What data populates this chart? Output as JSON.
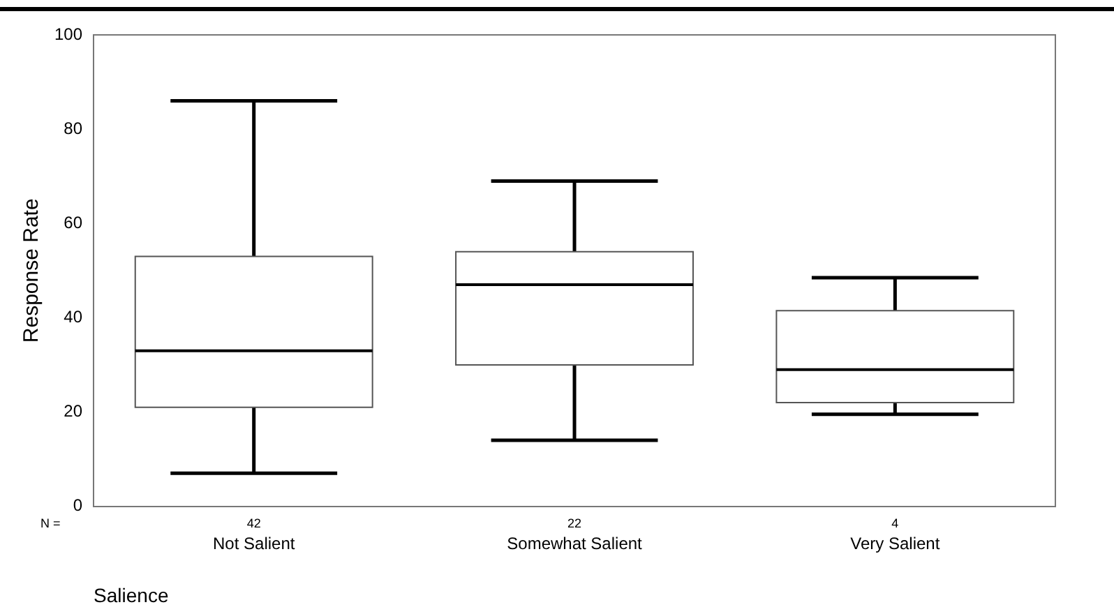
{
  "chart_data": {
    "type": "box",
    "xlabel": "Salience",
    "ylabel": "Response Rate",
    "categories": [
      "Not Salient",
      "Somewhat Salient",
      "Very Salient"
    ],
    "boxes": [
      {
        "low": 7,
        "q1": 21,
        "median": 33,
        "q3": 53,
        "high": 86
      },
      {
        "low": 14,
        "q1": 30,
        "median": 47,
        "q3": 54,
        "high": 69
      },
      {
        "low": 19.5,
        "q1": 22,
        "median": 29,
        "q3": 41.5,
        "high": 48.5
      }
    ],
    "ylim": [
      0,
      100
    ],
    "yticks": [
      0,
      20,
      40,
      60,
      80,
      100
    ],
    "grid": false,
    "legend": false,
    "annotations": [
      "N =",
      "42",
      "22",
      "4"
    ]
  }
}
